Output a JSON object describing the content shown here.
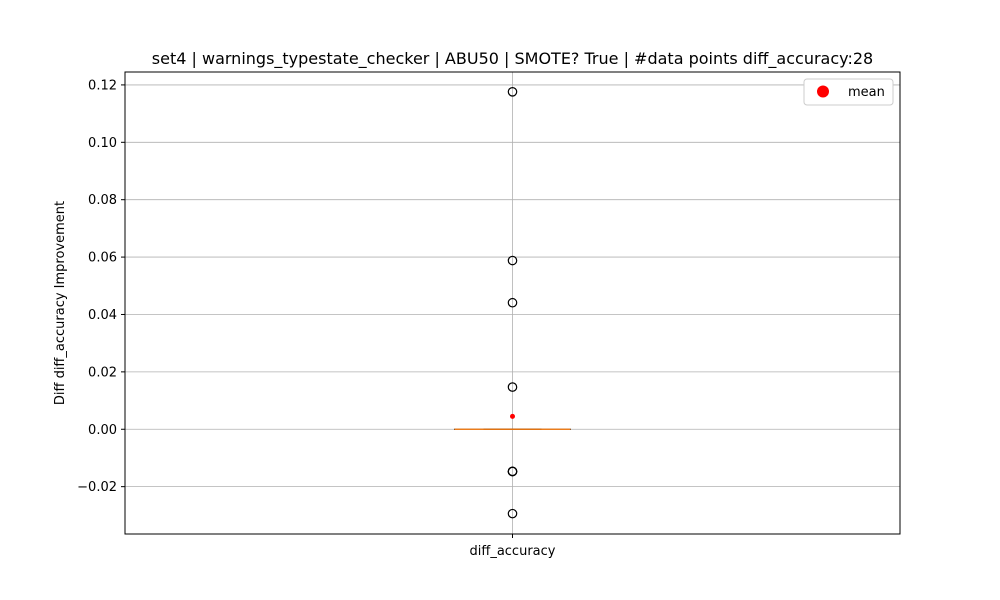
{
  "chart_data": {
    "type": "box",
    "title": "set4 | warnings_typestate_checker | ABU50 | SMOTE? True | #data points diff_accuracy:28",
    "xlabel": "",
    "ylabel": "Diff diff_accuracy Improvement",
    "categories": [
      "diff_accuracy"
    ],
    "ylim": [
      -0.0365,
      0.1245
    ],
    "yticks": [
      -0.02,
      0.0,
      0.02,
      0.04,
      0.06,
      0.08,
      0.1,
      0.12
    ],
    "ytick_labels": [
      "−0.02",
      "0.00",
      "0.02",
      "0.04",
      "0.06",
      "0.08",
      "0.10",
      "0.12"
    ],
    "grid": true,
    "legend": {
      "position": "top-right",
      "entries": [
        {
          "label": "mean",
          "color": "#ff0000"
        }
      ]
    },
    "box": {
      "q1": 0.0,
      "median": 0.0,
      "q3": 0.0,
      "whisker_low": 0.0,
      "whisker_high": 0.0,
      "mean": 0.0045,
      "outliers": [
        0.1176,
        0.0588,
        0.0441,
        0.0147,
        -0.0147,
        -0.0147,
        -0.0147,
        -0.0294
      ]
    },
    "colors": {
      "box": "#000000",
      "median": "#ff7f0e",
      "mean": "#ff0000",
      "outlier": "#000000",
      "grid": "#b0b0b0"
    }
  }
}
